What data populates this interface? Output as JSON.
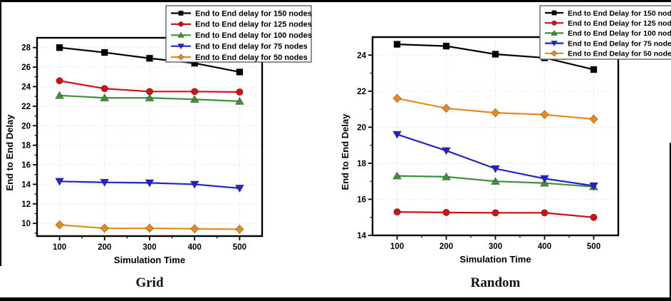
{
  "figure": {
    "left_caption": "Grid",
    "right_caption": "Random"
  },
  "chart_data": [
    {
      "type": "line",
      "caption": "Grid",
      "xlabel": "Simulation Time",
      "ylabel": "End to End Delay",
      "x": [
        100,
        200,
        300,
        400,
        500
      ],
      "xlim": [
        50,
        550
      ],
      "ylim": [
        8.7,
        29.0
      ],
      "xticks": [
        100,
        200,
        300,
        400,
        500
      ],
      "yticks": [
        10,
        12,
        14,
        16,
        18,
        20,
        22,
        24,
        26,
        28
      ],
      "x_minor_step": 50,
      "y_minor_step": 1,
      "grid": true,
      "legend_position": "top-right",
      "series": [
        {
          "name": "End to End delay for 150 nodes",
          "color": "#000000",
          "marker": "square",
          "values": [
            28.0,
            27.5,
            26.9,
            26.4,
            25.5
          ]
        },
        {
          "name": "End to End delay for 125 nodes",
          "color": "#cc1414",
          "marker": "circle",
          "values": [
            24.6,
            23.8,
            23.5,
            23.5,
            23.45
          ]
        },
        {
          "name": "End to End delay for 100 nodes",
          "color": "#3f8f3f",
          "marker": "triangle-up",
          "values": [
            23.1,
            22.85,
            22.85,
            22.7,
            22.5
          ]
        },
        {
          "name": "End to End delay for 75 nodes",
          "color": "#2323cd",
          "marker": "triangle-down",
          "values": [
            14.3,
            14.2,
            14.15,
            14.0,
            13.6
          ]
        },
        {
          "name": "End to End delay for 50 nodes",
          "color": "#e8891b",
          "marker": "diamond",
          "values": [
            9.85,
            9.5,
            9.5,
            9.45,
            9.4
          ]
        }
      ]
    },
    {
      "type": "line",
      "caption": "Random",
      "xlabel": "Simulation Time",
      "ylabel": "End to End Delay",
      "x": [
        100,
        200,
        300,
        400,
        500
      ],
      "xlim": [
        50,
        550
      ],
      "ylim": [
        14.0,
        25.0
      ],
      "xticks": [
        100,
        200,
        300,
        400,
        500
      ],
      "yticks": [
        14,
        16,
        18,
        20,
        22,
        24
      ],
      "x_minor_step": 50,
      "y_minor_step": 1,
      "grid": true,
      "legend_position": "top-right",
      "series": [
        {
          "name": "End to End Delay for 150 nodes",
          "color": "#000000",
          "marker": "square",
          "values": [
            24.6,
            24.5,
            24.05,
            23.85,
            23.2
          ]
        },
        {
          "name": "End to End Delay for 125 nodes",
          "color": "#cc1414",
          "marker": "circle",
          "values": [
            15.3,
            15.27,
            15.25,
            15.25,
            15.0
          ]
        },
        {
          "name": "End to End Delay for 100 nodes",
          "color": "#3f8f3f",
          "marker": "triangle-up",
          "values": [
            17.3,
            17.25,
            17.0,
            16.9,
            16.7
          ]
        },
        {
          "name": "End to End Delay for 75 nodes",
          "color": "#2323cd",
          "marker": "triangle-down",
          "values": [
            19.6,
            18.7,
            17.7,
            17.15,
            16.75
          ]
        },
        {
          "name": "End to End Delay for 50 nodes",
          "color": "#e8891b",
          "marker": "diamond",
          "values": [
            21.6,
            21.05,
            20.8,
            20.7,
            20.45
          ]
        }
      ]
    }
  ]
}
